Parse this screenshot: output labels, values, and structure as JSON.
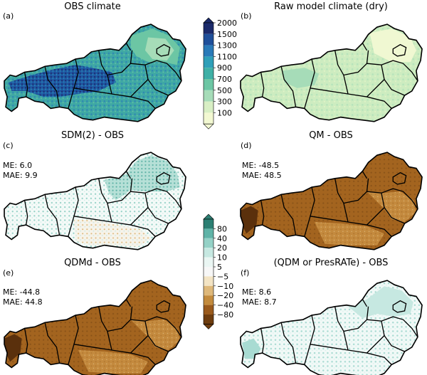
{
  "figure": {
    "panels": [
      {
        "id": "a",
        "letter": "(a)",
        "title": "OBS climate",
        "style": "obs",
        "me": null,
        "mae": null
      },
      {
        "id": "b",
        "letter": "(b)",
        "title": "Raw model climate (dry)",
        "style": "raw",
        "me": null,
        "mae": null
      },
      {
        "id": "c",
        "letter": "(c)",
        "title": "SDM(2) - OBS",
        "style": "sdm",
        "me": "ME: 6.0",
        "mae": "MAE: 9.9"
      },
      {
        "id": "d",
        "letter": "(d)",
        "title": "QM - OBS",
        "style": "qm",
        "me": "ME: -48.5",
        "mae": "MAE: 48.5"
      },
      {
        "id": "e",
        "letter": "(e)",
        "title": "QDMd - OBS",
        "style": "qdmd",
        "me": "ME: -44.8",
        "mae": "MAE: 44.8"
      },
      {
        "id": "f",
        "letter": "(f)",
        "title": "(QDM or PresRATe) - OBS",
        "style": "qdm",
        "me": "ME: 8.6",
        "mae": "MAE: 8.7"
      }
    ],
    "colorbar_climate": {
      "ticks": [
        "2000",
        "1500",
        "1300",
        "1100",
        "900",
        "700",
        "500",
        "300",
        "100"
      ],
      "colors": [
        "#1b2a6b",
        "#1f4f9a",
        "#2a7ab8",
        "#2f9fb8",
        "#3fb0a6",
        "#6cc6a4",
        "#a6dcb8",
        "#d8efc4",
        "#f3f9d2"
      ]
    },
    "colorbar_diff": {
      "ticks": [
        "80",
        "40",
        "20",
        "10",
        "5",
        "−5",
        "−10",
        "−20",
        "−40",
        "−80"
      ],
      "colors": [
        "#2c7f73",
        "#5fb3a7",
        "#94d1c6",
        "#c6e8e1",
        "#eaf6f3",
        "#f7f7f7",
        "#f3e4c4",
        "#deb87a",
        "#c38b3d",
        "#9a5a1c",
        "#6e3d0f"
      ]
    }
  }
}
